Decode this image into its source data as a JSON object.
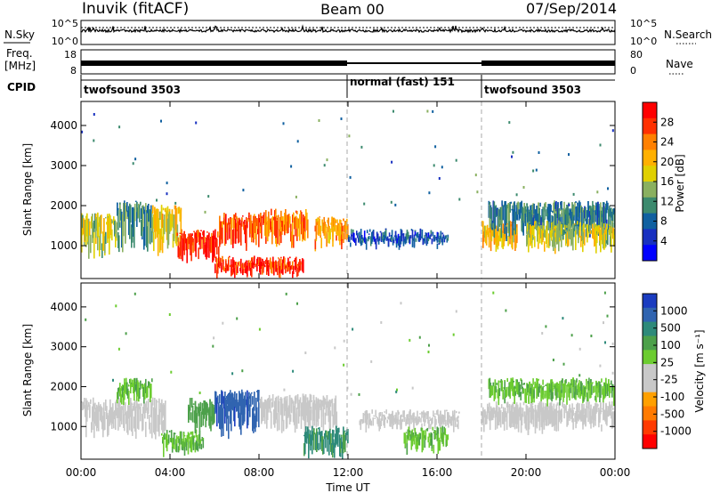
{
  "header": {
    "station": "Inuvik (fitACF)",
    "beam": "Beam 00",
    "date": "07/Sep/2014"
  },
  "top_panels": {
    "nsky_label": "N.Sky",
    "nsky_ticks": [
      "10^5",
      "10^0"
    ],
    "nsearch_label": "N.Search",
    "nsearch_ticks": [
      "10^5",
      "10^0"
    ],
    "freq_label_1": "Freq.",
    "freq_label_2": "[MHz]",
    "freq_ticks": [
      "18",
      "8"
    ],
    "nave_label": "Nave",
    "nave_ticks": [
      "80",
      "0"
    ],
    "cpid_label": "CPID",
    "cpid_segments": [
      {
        "label": "twofsound 3503",
        "start_hour": 0,
        "end_hour": 12
      },
      {
        "label": "normal (fast) 151",
        "start_hour": 12,
        "end_hour": 18
      },
      {
        "label": "twofsound 3503",
        "start_hour": 18,
        "end_hour": 24
      }
    ]
  },
  "power_colorbar": {
    "label": "Power [dB]",
    "ticks": [
      "28",
      "24",
      "20",
      "16",
      "12",
      "8",
      "4"
    ],
    "colors": [
      "#ff0000",
      "#ff3000",
      "#ff8000",
      "#ffb000",
      "#e0d000",
      "#8ab060",
      "#3c8a6e",
      "#1060a0",
      "#1830c0",
      "#0000ff"
    ]
  },
  "velocity_colorbar": {
    "label": "Velocity [m s⁻¹]",
    "ticks": [
      "1000",
      "500",
      "100",
      "25",
      "-25",
      "-100",
      "-500",
      "-1000"
    ],
    "colors": [
      "#1a3cc0",
      "#3064b0",
      "#2e8a7a",
      "#4ca04a",
      "#6ccc30",
      "#c8c8c8",
      "#c8c8c8",
      "#ffa000",
      "#ff7a00",
      "#ff3a00",
      "#ff0000"
    ]
  },
  "axes": {
    "ylabel": "Slant Range [km]",
    "yticks": [
      "4000",
      "3000",
      "2000",
      "1000"
    ],
    "xlabel": "Time UT",
    "xticks": [
      "00:00",
      "04:00",
      "08:00",
      "12:00",
      "16:00",
      "20:00",
      "00:00"
    ]
  },
  "chart_data": [
    {
      "type": "heatmap",
      "title": "Power",
      "ylabel": "Slant Range [km]",
      "x_range_hours": [
        0,
        24
      ],
      "ylim": [
        180,
        4600
      ],
      "colorbar_ticks": [
        4,
        8,
        12,
        16,
        20,
        24,
        28
      ],
      "mode_change_markers_hours": [
        12,
        18
      ],
      "echo_regions": [
        {
          "t0": 0.0,
          "t1": 1.6,
          "r0": 700,
          "r1": 1700,
          "db": 17
        },
        {
          "t0": 1.6,
          "t1": 3.2,
          "r0": 800,
          "r1": 2000,
          "db": 12
        },
        {
          "t0": 3.2,
          "t1": 4.5,
          "r0": 850,
          "r1": 1900,
          "db": 19
        },
        {
          "t0": 4.3,
          "t1": 6.2,
          "r0": 600,
          "r1": 1300,
          "db": 28
        },
        {
          "t0": 6.2,
          "t1": 8.2,
          "r0": 900,
          "r1": 1700,
          "db": 26
        },
        {
          "t0": 6.0,
          "t1": 10.0,
          "r0": 220,
          "r1": 620,
          "db": 28
        },
        {
          "t0": 8.2,
          "t1": 10.2,
          "r0": 1000,
          "r1": 1800,
          "db": 24
        },
        {
          "t0": 10.5,
          "t1": 12.0,
          "r0": 950,
          "r1": 1600,
          "db": 22
        },
        {
          "t0": 12.0,
          "t1": 16.5,
          "r0": 1000,
          "r1": 1300,
          "db": 8
        },
        {
          "t0": 18.0,
          "t1": 19.6,
          "r0": 900,
          "r1": 1500,
          "db": 20
        },
        {
          "t0": 18.3,
          "t1": 24.0,
          "r0": 1200,
          "r1": 2000,
          "db": 11
        },
        {
          "t0": 20.0,
          "t1": 24.0,
          "r0": 900,
          "r1": 1500,
          "db": 17
        }
      ]
    },
    {
      "type": "heatmap",
      "title": "Velocity",
      "ylabel": "Slant Range [km]",
      "xlabel": "Time UT",
      "x_range_hours": [
        0,
        24
      ],
      "ylim": [
        180,
        4600
      ],
      "colorbar_ticks": [
        -1000,
        -500,
        -100,
        -25,
        25,
        100,
        500,
        1000
      ],
      "mode_change_markers_hours": [
        12,
        18
      ],
      "echo_regions": [
        {
          "t0": 0.0,
          "t1": 3.8,
          "r0": 750,
          "r1": 1600,
          "vel": -150
        },
        {
          "t0": 1.6,
          "t1": 3.2,
          "r0": 1600,
          "r1": 2100,
          "vel": 20
        },
        {
          "t0": 3.6,
          "t1": 5.5,
          "r0": 300,
          "r1": 800,
          "vel": 20
        },
        {
          "t0": 4.8,
          "t1": 6.0,
          "r0": 900,
          "r1": 1600,
          "vel": 50
        },
        {
          "t0": 6.0,
          "t1": 8.0,
          "r0": 800,
          "r1": 1800,
          "vel": 800
        },
        {
          "t0": 8.0,
          "t1": 11.5,
          "r0": 900,
          "r1": 1700,
          "vel": -150
        },
        {
          "t0": 10.0,
          "t1": 12.0,
          "r0": 250,
          "r1": 900,
          "vel": 120
        },
        {
          "t0": 12.5,
          "t1": 17.0,
          "r0": 950,
          "r1": 1300,
          "vel": -120
        },
        {
          "t0": 14.5,
          "t1": 16.5,
          "r0": 350,
          "r1": 900,
          "vel": 20
        },
        {
          "t0": 18.0,
          "t1": 21.5,
          "r0": 850,
          "r1": 1500,
          "vel": -300
        },
        {
          "t0": 18.3,
          "t1": 24.0,
          "r0": 1600,
          "r1": 2100,
          "vel": 20
        },
        {
          "t0": 20.5,
          "t1": 24.0,
          "r0": 1000,
          "r1": 1500,
          "vel": -120
        }
      ]
    }
  ]
}
